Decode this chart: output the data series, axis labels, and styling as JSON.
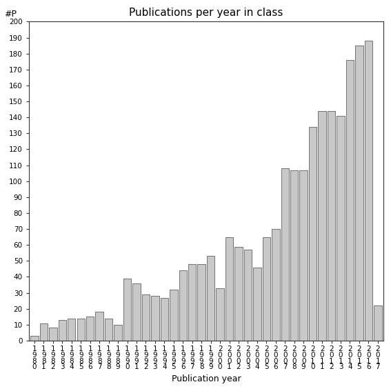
{
  "title": "Publications per year in class",
  "xlabel": "Publication year",
  "ylabel": "#P",
  "years": [
    "1980",
    "1981",
    "1982",
    "1983",
    "1984",
    "1985",
    "1986",
    "1987",
    "1988",
    "1989",
    "1990",
    "1991",
    "1992",
    "1993",
    "1994",
    "1995",
    "1996",
    "1997",
    "1998",
    "1999",
    "2000",
    "2001",
    "2002",
    "2003",
    "2004",
    "2005",
    "2006",
    "2007",
    "2008",
    "2009",
    "2010",
    "2011",
    "2012",
    "2013",
    "2014",
    "2015",
    "2016",
    "2017"
  ],
  "values": [
    3,
    11,
    8,
    13,
    14,
    14,
    15,
    18,
    14,
    10,
    39,
    36,
    29,
    28,
    27,
    32,
    44,
    48,
    48,
    53,
    33,
    65,
    59,
    57,
    46,
    65,
    70,
    108,
    107,
    107,
    134,
    144,
    144,
    141,
    176,
    185,
    188,
    22
  ],
  "bar_color": "#c8c8c8",
  "bar_edge_color": "#444444",
  "ylim": [
    0,
    200
  ],
  "yticks": [
    0,
    10,
    20,
    30,
    40,
    50,
    60,
    70,
    80,
    90,
    100,
    110,
    120,
    130,
    140,
    150,
    160,
    170,
    180,
    190,
    200
  ],
  "bg_color": "#ffffff",
  "title_fontsize": 11,
  "xlabel_fontsize": 9,
  "ylabel_fontsize": 9,
  "tick_fontsize": 7.5
}
